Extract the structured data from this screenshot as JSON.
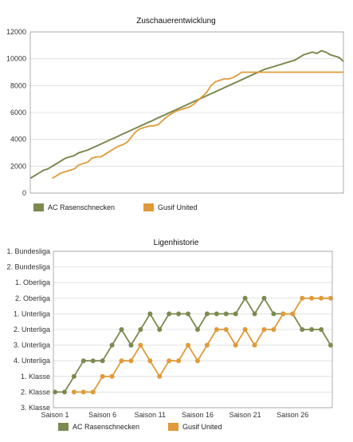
{
  "colors": {
    "series1": "#7c8a4f",
    "series2": "#e09a38",
    "grid": "#dcdcdc",
    "frame": "#999999"
  },
  "chart_data": [
    {
      "type": "line",
      "title": "Zuschauerentwicklung",
      "ylim": [
        0,
        12000
      ],
      "yticks": [
        0,
        2000,
        4000,
        6000,
        8000,
        10000,
        12000
      ],
      "ytick_labels": [
        "0",
        "2000",
        "4000",
        "6000",
        "8000",
        "10000",
        "12000"
      ],
      "grid": true,
      "legend": "bottom",
      "series": [
        {
          "name": "AC Rasenschnecken",
          "color": "#7c8a4f",
          "values": [
            1100,
            1300,
            1500,
            1700,
            1800,
            2000,
            2200,
            2400,
            2600,
            2700,
            2800,
            3000,
            3100,
            3200,
            3350,
            3500,
            3650,
            3800,
            3950,
            4100,
            4250,
            4400,
            4550,
            4700,
            4850,
            5000,
            5150,
            5300,
            5450,
            5600,
            5750,
            5900,
            6050,
            6200,
            6350,
            6500,
            6650,
            6800,
            6950,
            7100,
            7250,
            7400,
            7550,
            7700,
            7850,
            8000,
            8150,
            8300,
            8450,
            8600,
            8750,
            8900,
            9050,
            9200,
            9300,
            9400,
            9500,
            9600,
            9700,
            9800,
            9900,
            10100,
            10300,
            10400,
            10500,
            10400,
            10600,
            10500,
            10300,
            10200,
            10100,
            9800
          ]
        },
        {
          "name": "Gusif United",
          "color": "#e09a38",
          "values": [
            null,
            null,
            null,
            null,
            null,
            1100,
            1300,
            1500,
            1600,
            1700,
            1800,
            2100,
            2200,
            2300,
            2600,
            2700,
            2700,
            2900,
            3100,
            3300,
            3500,
            3600,
            3800,
            4200,
            4600,
            4800,
            4900,
            5000,
            5000,
            5100,
            5400,
            5700,
            5900,
            6100,
            6200,
            6300,
            6400,
            6600,
            6900,
            7200,
            7500,
            8000,
            8300,
            8400,
            8500,
            8500,
            8600,
            8800,
            9000,
            9000,
            9000,
            9000,
            9000,
            9000,
            9000,
            9000,
            9000,
            9000,
            9000,
            9000,
            9000,
            9000,
            9000,
            9000,
            9000,
            9000,
            9000,
            9000,
            9000,
            9000,
            9000,
            9000
          ]
        }
      ]
    },
    {
      "type": "line",
      "title": "Ligenhistorie",
      "y_categories": [
        "1. Bundesliga",
        "2. Bundesliga",
        "1. Oberliga",
        "2. Oberliga",
        "1. Unterliga",
        "2. Unterliga",
        "3. Unterliga",
        "4. Unterliga",
        "1. Klasse",
        "2. Klasse",
        "3. Klasse"
      ],
      "x_categories": [
        "Saison 1",
        "Saison 2",
        "Saison 3",
        "Saison 4",
        "Saison 5",
        "Saison 6",
        "Saison 7",
        "Saison 8",
        "Saison 9",
        "Saison 10",
        "Saison 11",
        "Saison 12",
        "Saison 13",
        "Saison 14",
        "Saison 15",
        "Saison 16",
        "Saison 17",
        "Saison 18",
        "Saison 19",
        "Saison 20",
        "Saison 21",
        "Saison 22",
        "Saison 23",
        "Saison 24",
        "Saison 25",
        "Saison 26",
        "Saison 27",
        "Saison 28",
        "Saison 29",
        "Saison 30"
      ],
      "x_tick_labels": [
        "Saison 1",
        "Saison 6",
        "Saison 11",
        "Saison 16",
        "Saison 21",
        "Saison 26"
      ],
      "grid": true,
      "legend": "bottom",
      "series": [
        {
          "name": "AC Rasenschnecken",
          "color": "#7c8a4f",
          "values": [
            "2. Klasse",
            "2. Klasse",
            "1. Klasse",
            "4. Unterliga",
            "4. Unterliga",
            "4. Unterliga",
            "3. Unterliga",
            "2. Unterliga",
            "3. Unterliga",
            "2. Unterliga",
            "1. Unterliga",
            "2. Unterliga",
            "1. Unterliga",
            "1. Unterliga",
            "1. Unterliga",
            "2. Unterliga",
            "1. Unterliga",
            "1. Unterliga",
            "1. Unterliga",
            "1. Unterliga",
            "2. Oberliga",
            "1. Unterliga",
            "2. Oberliga",
            "1. Unterliga",
            "1. Unterliga",
            "1. Unterliga",
            "2. Unterliga",
            "2. Unterliga",
            "2. Unterliga",
            "3. Unterliga"
          ]
        },
        {
          "name": "Gusif United",
          "color": "#e09a38",
          "values": [
            null,
            null,
            "2. Klasse",
            "2. Klasse",
            "2. Klasse",
            "1. Klasse",
            "1. Klasse",
            "4. Unterliga",
            "4. Unterliga",
            "3. Unterliga",
            "4. Unterliga",
            "1. Klasse",
            "4. Unterliga",
            "4. Unterliga",
            "3. Unterliga",
            "4. Unterliga",
            "3. Unterliga",
            "2. Unterliga",
            "2. Unterliga",
            "3. Unterliga",
            "2. Unterliga",
            "3. Unterliga",
            "2. Unterliga",
            "2. Unterliga",
            "1. Unterliga",
            "1. Unterliga",
            "2. Oberliga",
            "2. Oberliga",
            "2. Oberliga",
            "2. Oberliga"
          ]
        }
      ]
    }
  ]
}
